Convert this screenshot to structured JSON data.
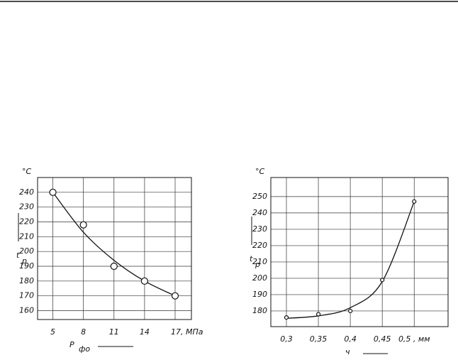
{
  "chart_data": [
    {
      "type": "scatter",
      "y_unit": "°С",
      "y_label": {
        "text": "t",
        "sub": "р"
      },
      "x_label": {
        "text": "P",
        "sub": "фо"
      },
      "x": [
        5,
        8,
        11,
        14,
        17
      ],
      "values": [
        240,
        218,
        190,
        180,
        170
      ],
      "curve": {
        "x": [
          5,
          8,
          11,
          14,
          17
        ],
        "values": [
          240,
          213,
          194,
          180,
          170
        ]
      },
      "xlim": [
        3.5,
        18.6
      ],
      "xticks": [
        5,
        8,
        11,
        14,
        {
          "value": 17,
          "label": "17, МПа"
        }
      ],
      "ylim": [
        154,
        250
      ],
      "yticks": [
        160,
        170,
        180,
        190,
        200,
        210,
        220,
        230,
        240
      ],
      "grid": true
    },
    {
      "type": "scatter",
      "y_unit": "°С",
      "y_label": {
        "text": "t",
        "sub": "р"
      },
      "x_label": {
        "text": "ч",
        "sub": ""
      },
      "x": [
        0.3,
        0.35,
        0.4,
        0.45,
        0.5
      ],
      "values": [
        176,
        178,
        180,
        199,
        247
      ],
      "curve": {
        "x": [
          0.3,
          0.35,
          0.4,
          0.45,
          0.5
        ],
        "values": [
          175.5,
          177,
          182,
          198,
          247
        ]
      },
      "xlim": [
        0.2756,
        0.553
      ],
      "xticks": [
        {
          "value": 0.3,
          "label": "0,3"
        },
        {
          "value": 0.35,
          "label": "0,35"
        },
        {
          "value": 0.4,
          "label": "0,4"
        },
        {
          "value": 0.45,
          "label": "0,45"
        },
        {
          "value": 0.5,
          "label": "0,5 , мм"
        }
      ],
      "ylim": [
        170.4,
        261.7
      ],
      "yticks": [
        180,
        190,
        200,
        210,
        220,
        230,
        240,
        250
      ],
      "grid": true
    }
  ]
}
